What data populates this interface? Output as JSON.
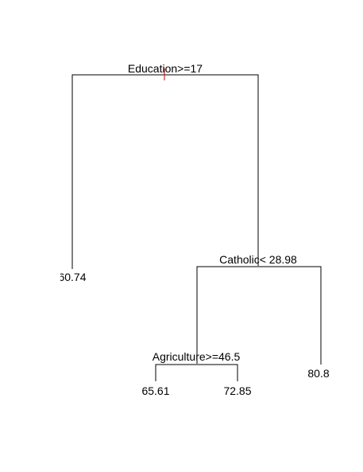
{
  "tree": {
    "root": {
      "split": "Education>=17",
      "left_leaf": "60.74",
      "right": {
        "split": "Catholic< 28.98",
        "left": {
          "split": "Agriculture>=46.5",
          "left_leaf": "65.61",
          "right_leaf": "72.85"
        },
        "right_leaf": "80.8"
      }
    },
    "colors": {
      "lines": "#000000",
      "root_marker": "#cc0000",
      "background": "#ffffff"
    }
  }
}
